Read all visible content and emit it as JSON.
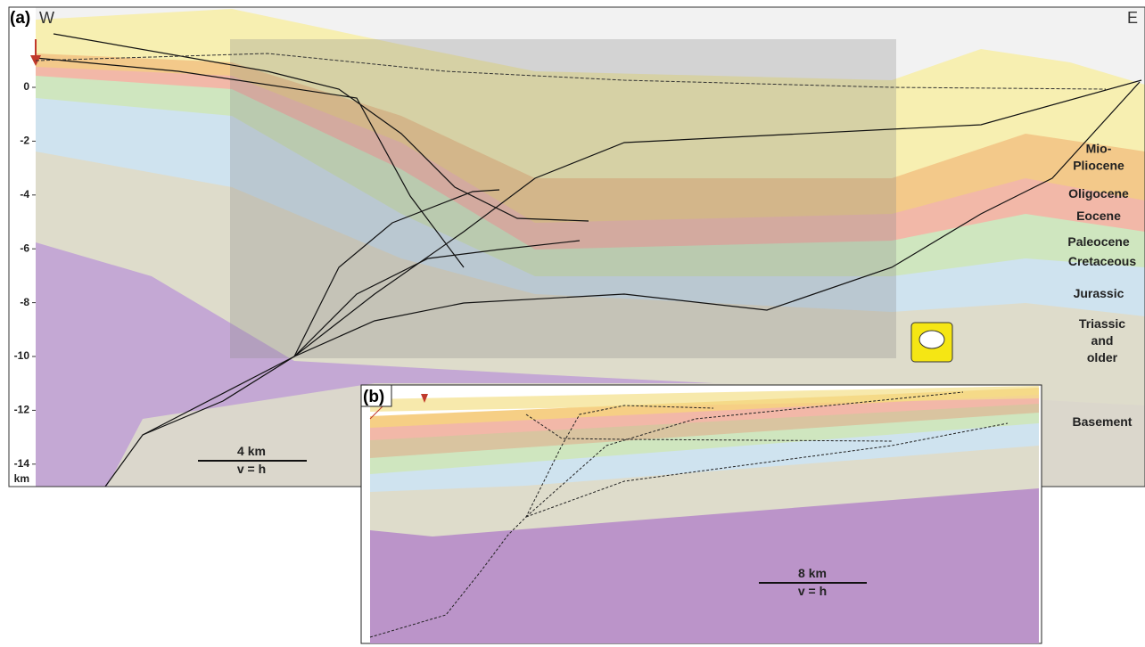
{
  "panel_a": {
    "label": "(a)",
    "west": "W",
    "east": "E",
    "depth_axis": {
      "ticks": [
        0,
        -2,
        -4,
        -6,
        -8,
        -10,
        -12,
        -14
      ],
      "unit": "km"
    },
    "formations": [
      {
        "lines": [
          "Mio-",
          "Pliocene"
        ]
      },
      {
        "lines": [
          "Oligocene"
        ]
      },
      {
        "lines": [
          "Eocene"
        ]
      },
      {
        "lines": [
          "Paleocene"
        ]
      },
      {
        "lines": [
          "Cretaceous"
        ]
      },
      {
        "lines": [
          "Jurassic"
        ]
      },
      {
        "lines": [
          "Triassic",
          "and",
          "older"
        ]
      },
      {
        "lines": [
          "Basement"
        ]
      }
    ],
    "scale_bar": {
      "length": "4 km",
      "ratio": "v = h"
    }
  },
  "panel_b": {
    "label": "(b)",
    "scale_bar": {
      "length": "8 km",
      "ratio": "v = h"
    }
  }
}
